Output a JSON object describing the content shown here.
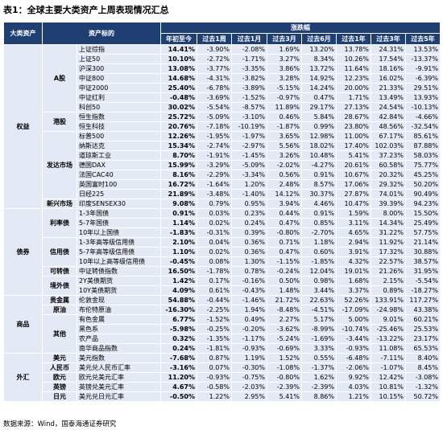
{
  "title": "表1：全球主要大类资产上周表现情况汇总",
  "footer": "数据来源：Wind，国泰海通证券研究",
  "headers": {
    "category": "大类资产",
    "target": "资产标的",
    "zhangdiefu": "涨跌幅",
    "current": "年初至今",
    "periods": [
      "过去1周",
      "过去1月",
      "过去3月",
      "过去6月",
      "过去1年",
      "过去3年",
      "过去5年"
    ]
  },
  "sections": [
    {
      "category": "权益",
      "rows": [
        {
          "group": "A股",
          "name": "上证综指",
          "values": [
            "14.41%",
            "-3.90%",
            "-2.08%",
            "1.69%",
            "13.20%",
            "13.78%",
            "24.31%",
            "13.53%"
          ]
        },
        {
          "group": "",
          "name": "上证50",
          "values": [
            "10.10%",
            "-2.72%",
            "-1.71%",
            "3.27%",
            "8.34%",
            "10.26%",
            "17.54%",
            "-13.37%"
          ]
        },
        {
          "group": "",
          "name": "沪深300",
          "values": [
            "13.08%",
            "-3.77%",
            "-3.35%",
            "3.86%",
            "13.72%",
            "11.64%",
            "18.16%",
            "-9.91%"
          ]
        },
        {
          "group": "",
          "name": "中证800",
          "values": [
            "14.68%",
            "-4.31%",
            "-3.82%",
            "3.28%",
            "14.92%",
            "12.23%",
            "16.02%",
            "-6.39%"
          ]
        },
        {
          "group": "",
          "name": "中证2000",
          "values": [
            "25.40%",
            "-6.78%",
            "-3.89%",
            "-5.15%",
            "14.24%",
            "20.00%",
            "21.33%",
            "29.51%"
          ]
        },
        {
          "group": "",
          "name": "中证红利",
          "values": [
            "-0.48%",
            "-3.69%",
            "-1.52%",
            "-0.97%",
            "0.47%",
            "1.71%",
            "13.49%",
            "13.93%"
          ]
        },
        {
          "group": "",
          "name": "科创50",
          "values": [
            "30.02%",
            "-5.54%",
            "-8.57%",
            "11.89%",
            "29.17%",
            "27.13%",
            "24.54%",
            "-10.13%"
          ]
        },
        {
          "group": "港股",
          "name": "恒生指数",
          "values": [
            "25.72%",
            "-5.09%",
            "-3.10%",
            "0.46%",
            "5.84%",
            "28.67%",
            "42.84%",
            "-4.66%"
          ]
        },
        {
          "group": "",
          "name": "恒生科技",
          "values": [
            "20.76%",
            "-7.18%",
            "-10.19%",
            "-1.87%",
            "0.99%",
            "23.80%",
            "48.56%",
            "-32.54%"
          ]
        },
        {
          "group": "发达市场",
          "name": "标普500",
          "values": [
            "12.26%",
            "-1.95%",
            "-1.97%",
            "3.65%",
            "12.98%",
            "11.00%",
            "67.17%",
            "85.61%"
          ]
        },
        {
          "group": "",
          "name": "纳斯达克",
          "values": [
            "15.34%",
            "-2.74%",
            "-2.97%",
            "5.56%",
            "18.02%",
            "17.40%",
            "102.03%",
            "87.88%"
          ]
        },
        {
          "group": "",
          "name": "道琼斯工业",
          "values": [
            "8.70%",
            "-1.91%",
            "-1.45%",
            "3.26%",
            "10.48%",
            "5.41%",
            "37.23%",
            "58.03%"
          ]
        },
        {
          "group": "",
          "name": "德国DAX",
          "values": [
            "15.99%",
            "-3.29%",
            "-5.09%",
            "-2.02%",
            "-4.27%",
            "20.61%",
            "60.58%",
            "75.77%"
          ]
        },
        {
          "group": "",
          "name": "法国CAC40",
          "values": [
            "8.16%",
            "-2.29%",
            "-3.34%",
            "0.56%",
            "0.91%",
            "10.67%",
            "20.32%",
            "45.25%"
          ]
        },
        {
          "group": "",
          "name": "英国富时100",
          "values": [
            "16.72%",
            "-1.64%",
            "1.20%",
            "2.48%",
            "8.57%",
            "17.06%",
            "29.32%",
            "50.20%"
          ]
        },
        {
          "group": "",
          "name": "日经225",
          "values": [
            "21.89%",
            "-3.48%",
            "-1.40%",
            "14.12%",
            "30.37%",
            "27.87%",
            "74.01%",
            "90.49%"
          ]
        },
        {
          "group": "新兴市场",
          "name": "印度SENSEX30",
          "values": [
            "9.08%",
            "0.79%",
            "0.95%",
            "3.94%",
            "4.46%",
            "10.47%",
            "39.39%",
            "94.23%"
          ]
        }
      ]
    },
    {
      "category": "债券",
      "rows": [
        {
          "group": "利率债",
          "name": "1-3年国债",
          "values": [
            "0.91%",
            "0.03%",
            "0.23%",
            "0.44%",
            "0.91%",
            "1.59%",
            "8.00%",
            "15.50%"
          ]
        },
        {
          "group": "",
          "name": "5-7年国债",
          "values": [
            "1.14%",
            "0.02%",
            "0.24%",
            "0.47%",
            "0.85%",
            "3.11%",
            "14.34%",
            "25.49%"
          ]
        },
        {
          "group": "",
          "name": "10年以上国债",
          "values": [
            "-1.83%",
            "-0.31%",
            "0.39%",
            "-0.80%",
            "-2.70%",
            "4.65%",
            "31.22%",
            "57.75%"
          ]
        },
        {
          "group": "信用债",
          "name": "1-3年高等级信用债",
          "values": [
            "2.10%",
            "0.04%",
            "0.36%",
            "0.71%",
            "1.18%",
            "2.94%",
            "11.92%",
            "21.14%"
          ]
        },
        {
          "group": "",
          "name": "5-7年高等级信用债",
          "values": [
            "1.10%",
            "0.02%",
            "0.36%",
            "0.47%",
            "0.60%",
            "3.91%",
            "17.32%",
            "30.88%"
          ]
        },
        {
          "group": "",
          "name": "10年以上高等级信用债",
          "values": [
            "-0.45%",
            "0.08%",
            "1.30%",
            "-1.15%",
            "-1.85%",
            "4.32%",
            "22.57%",
            "38.57%"
          ]
        },
        {
          "group": "可转债",
          "name": "中证转债指数",
          "values": [
            "16.50%",
            "-1.78%",
            "0.78%",
            "-0.24%",
            "12.04%",
            "19.01%",
            "21.26%",
            "31.95%"
          ]
        },
        {
          "group": "境外债",
          "name": "2Y美债期货",
          "values": [
            "1.42%",
            "0.17%",
            "-0.16%",
            "0.50%",
            "0.98%",
            "1.68%",
            "2.15%",
            "-5.54%"
          ]
        },
        {
          "group": "",
          "name": "10Y美债期货",
          "values": [
            "4.09%",
            "0.61%",
            "-0.43%",
            "1.48%",
            "3.44%",
            "3.37%",
            "0.89%",
            "-18.27%"
          ]
        }
      ]
    },
    {
      "category": "商品",
      "rows": [
        {
          "group": "贵金属",
          "name": "伦敦金现",
          "values": [
            "54.88%",
            "-0.44%",
            "-1.46%",
            "21.72%",
            "22.63%",
            "52.26%",
            "133.91%",
            "117.27%"
          ]
        },
        {
          "group": "原油",
          "name": "布伦特原油",
          "values": [
            "-16.30%",
            "-2.25%",
            "1.94%",
            "-8.48%",
            "-4.51%",
            "-17.09%",
            "-24.98%",
            "43.38%"
          ]
        },
        {
          "group": "其他",
          "name": "有色金属",
          "values": [
            "6.77%",
            "-1.52%",
            "0.49%",
            "2.27%",
            "5.17%",
            "5.00%",
            "9.01%",
            "60.21%"
          ]
        },
        {
          "group": "",
          "name": "黑色系",
          "values": [
            "-5.98%",
            "-0.25%",
            "-0.20%",
            "-3.62%",
            "-8.99%",
            "-10.74%",
            "-25.46%",
            "25.53%"
          ]
        },
        {
          "group": "",
          "name": "农产品",
          "values": [
            "0.32%",
            "-1.35%",
            "-1.17%",
            "-5.24%",
            "-1.69%",
            "-3.44%",
            "-13.22%",
            "23.17%"
          ]
        },
        {
          "group": "",
          "name": "南华商品指数",
          "values": [
            "0.24%",
            "-1.81%",
            "-0.93%",
            "-0.69%",
            "3.33%",
            "-0.93%",
            "11.08%",
            "65.53%"
          ]
        }
      ]
    },
    {
      "category": "外汇",
      "rows": [
        {
          "group": "美元",
          "name": "美元指数",
          "values": [
            "-7.68%",
            "0.87%",
            "1.19%",
            "1.52%",
            "0.55%",
            "-6.48%",
            "-7.11%",
            "8.40%"
          ]
        },
        {
          "group": "人民币",
          "name": "美元兑人民币汇率",
          "values": [
            "-3.16%",
            "0.07%",
            "-0.30%",
            "-1.08%",
            "-1.37%",
            "-2.06%",
            "-1.07%",
            "8.45%"
          ]
        },
        {
          "group": "欧元",
          "name": "欧元兑美元汇率",
          "values": [
            "11.20%",
            "-0.93%",
            "-0.75%",
            "-0.80%",
            "1.62%",
            "9.92%",
            "12.42%",
            "-3.08%"
          ]
        },
        {
          "group": "英镑",
          "name": "英镑兑美元汇率",
          "values": [
            "4.67%",
            "-0.58%",
            "-2.03%",
            "-2.39%",
            "-2.39%",
            "4.03%",
            "10.81%",
            "-1.32%"
          ]
        },
        {
          "group": "日元",
          "name": "美元兑日元汇率",
          "values": [
            "-0.50%",
            "1.22%",
            "2.95%",
            "5.41%",
            "8.86%",
            "1.21%",
            "10.15%",
            "50.72%"
          ]
        }
      ]
    }
  ]
}
